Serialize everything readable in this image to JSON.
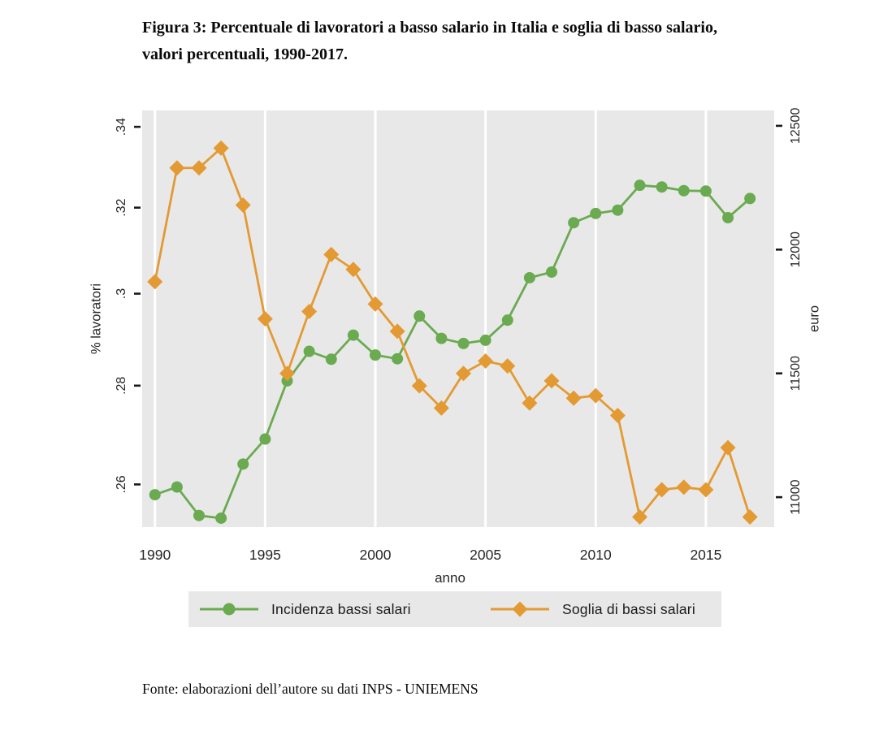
{
  "title": {
    "line1": "Figura 3: Percentuale di lavoratori a basso salario in Italia e soglia di basso salario,",
    "line2": "valori percentuali, 1990-2017."
  },
  "footer": "Fonte: elaborazioni dell’autore su dati INPS - UNIEMENS",
  "colors": {
    "green": "#6AAA50",
    "orange": "#E39A33",
    "plot_bg": "#E8E8E8",
    "gridline": "#FFFFFF",
    "tick": "#1A1A1A",
    "text": "#262626"
  },
  "legend": {
    "items": [
      {
        "label": "Incidenza bassi salari",
        "marker": "circle",
        "color": "#6AAA50"
      },
      {
        "label": "Soglia di bassi salari",
        "marker": "diamond",
        "color": "#E39A33"
      }
    ]
  },
  "chart_data": {
    "type": "line",
    "x": [
      1990,
      1991,
      1992,
      1993,
      1994,
      1995,
      1996,
      1997,
      1998,
      1999,
      2000,
      2001,
      2002,
      2003,
      2004,
      2005,
      2006,
      2007,
      2008,
      2009,
      2010,
      2011,
      2012,
      2013,
      2014,
      2015,
      2016,
      2017
    ],
    "series": [
      {
        "name": "Incidenza bassi salari",
        "axis": "left",
        "marker": "circle",
        "color": "#6AAA50",
        "values": [
          0.258,
          0.2595,
          0.254,
          0.2535,
          0.264,
          0.269,
          0.281,
          0.2873,
          0.2856,
          0.2908,
          0.2865,
          0.2857,
          0.295,
          0.2901,
          0.289,
          0.2897,
          0.2941,
          0.3036,
          0.3049,
          0.3164,
          0.3186,
          0.3194,
          0.3254,
          0.325,
          0.3241,
          0.324,
          0.3176,
          0.3222
        ]
      },
      {
        "name": "Soglia di bassi salari",
        "axis": "right",
        "marker": "diamond",
        "color": "#E39A33",
        "values": [
          11870,
          12330,
          12330,
          12410,
          12180,
          11720,
          11500,
          11750,
          11980,
          11920,
          11780,
          11670,
          11450,
          11360,
          11500,
          11550,
          11530,
          11380,
          11470,
          11400,
          11410,
          11330,
          10920,
          11030,
          11040,
          11030,
          11200,
          10920
        ]
      }
    ],
    "xlabel": "anno",
    "x_ticks": [
      1990,
      1995,
      2000,
      2005,
      2010,
      2015
    ],
    "x_tick_labels": [
      "1990",
      "1995",
      "2000",
      "2005",
      "2010",
      "2015"
    ],
    "xlim": [
      1989.42,
      2018.1
    ],
    "left_axis": {
      "label": "% lavoratori",
      "scale": "log",
      "ticks": [
        0.26,
        0.28,
        0.3,
        0.32,
        0.34
      ],
      "tick_labels": [
        ".26",
        ".28",
        ".3",
        ".32",
        ".34"
      ],
      "ylim": [
        0.2518,
        0.3442
      ]
    },
    "right_axis": {
      "label": "euro",
      "scale": "linear",
      "ticks": [
        11000,
        11500,
        12000,
        12500
      ],
      "tick_labels": [
        "11000",
        "11500",
        "12000",
        "12500"
      ],
      "ylim": [
        10879,
        12562
      ]
    },
    "gridlines": "vertical-white",
    "legend_position": "bottom"
  }
}
